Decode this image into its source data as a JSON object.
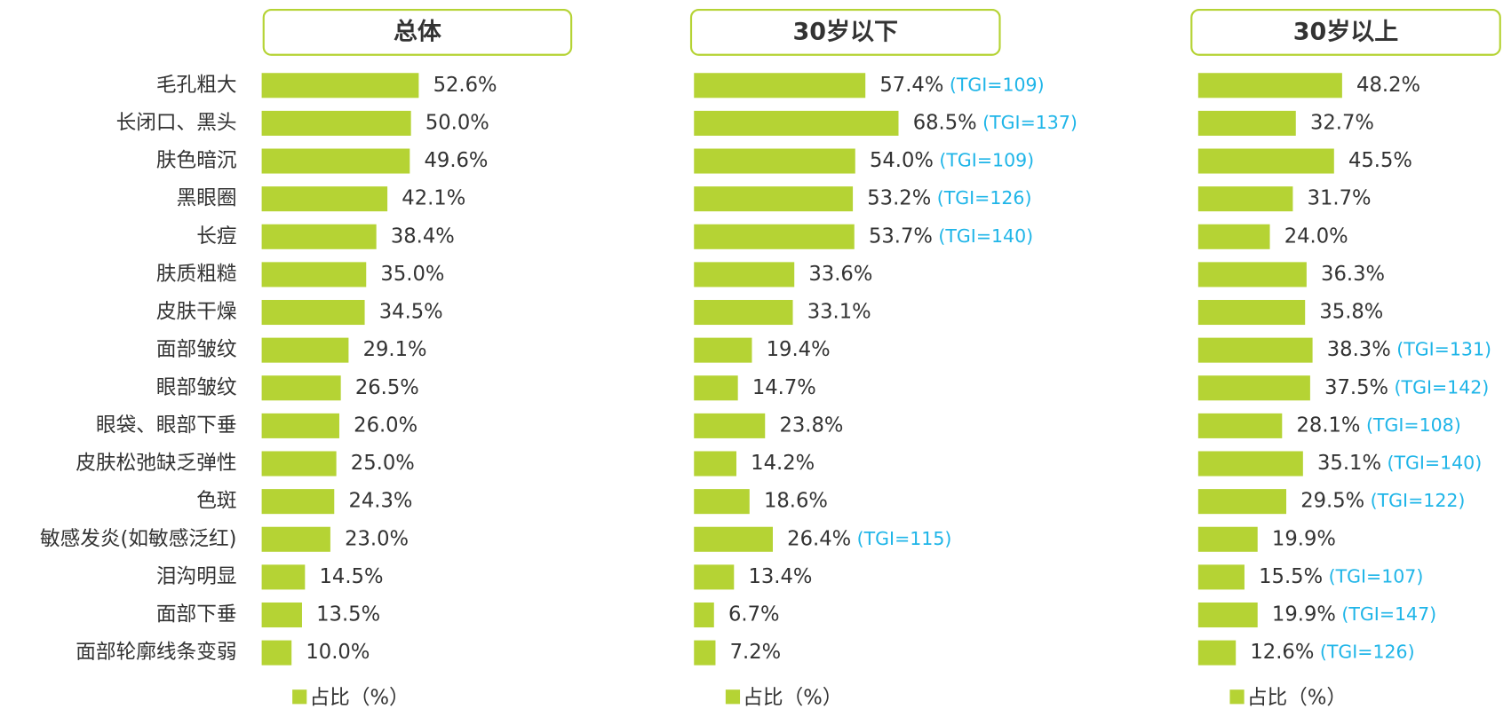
{
  "chart_data": [
    {
      "type": "bar",
      "orientation": "horizontal",
      "title": "总体",
      "categories": [
        "毛孔粗大",
        "长闭口、黑头",
        "肤色暗沉",
        "黑眼圈",
        "长痘",
        "肤质粗糙",
        "皮肤干燥",
        "面部皱纹",
        "眼部皱纹",
        "眼袋、眼部下垂",
        "皮肤松弛缺乏弹性",
        "色斑",
        "敏感发炎(如敏感泛红)",
        "泪沟明显",
        "面部下垂",
        "面部轮廓线条变弱"
      ],
      "series": [
        {
          "name": "占比（%）",
          "color": "#b5d334",
          "values": [
            52.6,
            50.0,
            49.6,
            42.1,
            38.4,
            35.0,
            34.5,
            29.1,
            26.5,
            26.0,
            25.0,
            24.3,
            23.0,
            14.5,
            13.5,
            10.0
          ],
          "value_labels": [
            "52.6%",
            "50.0%",
            "49.6%",
            "42.1%",
            "38.4%",
            "35.0%",
            "34.5%",
            "29.1%",
            "26.5%",
            "26.0%",
            "25.0%",
            "24.3%",
            "23.0%",
            "14.5%",
            "13.5%",
            "10.0%"
          ]
        }
      ]
    },
    {
      "type": "bar",
      "orientation": "horizontal",
      "title": "30岁以下",
      "series": [
        {
          "name": "占比（%）",
          "color": "#b5d334",
          "values": [
            57.4,
            68.5,
            54.0,
            53.2,
            53.7,
            33.6,
            33.1,
            19.4,
            14.7,
            23.8,
            14.2,
            18.6,
            26.4,
            13.4,
            6.7,
            7.2
          ],
          "value_labels": [
            "57.4%",
            "68.5%",
            "54.0%",
            "53.2%",
            "53.7%",
            "33.6%",
            "33.1%",
            "19.4%",
            "14.7%",
            "23.8%",
            "14.2%",
            "18.6%",
            "26.4%",
            "13.4%",
            "6.7%",
            "7.2%"
          ]
        }
      ],
      "annotations": [
        "(TGI=109)",
        "(TGI=137)",
        "(TGI=109)",
        "(TGI=126)",
        "(TGI=140)",
        null,
        null,
        null,
        null,
        null,
        null,
        null,
        "(TGI=115)",
        null,
        null,
        null
      ],
      "annotation_color": "#1fb5e8"
    },
    {
      "type": "bar",
      "orientation": "horizontal",
      "title": "30岁以上",
      "series": [
        {
          "name": "占比（%）",
          "color": "#b5d334",
          "values": [
            48.2,
            32.7,
            45.5,
            31.7,
            24.0,
            36.3,
            35.8,
            38.3,
            37.5,
            28.1,
            35.1,
            29.5,
            19.9,
            15.5,
            19.9,
            12.6
          ],
          "value_labels": [
            "48.2%",
            "32.7%",
            "45.5%",
            "31.7%",
            "24.0%",
            "36.3%",
            "35.8%",
            "38.3%",
            "37.5%",
            "28.1%",
            "35.1%",
            "29.5%",
            "19.9%",
            "15.5%",
            "19.9%",
            "12.6%"
          ]
        }
      ],
      "annotations": [
        null,
        null,
        null,
        null,
        null,
        null,
        null,
        "(TGI=131)",
        "(TGI=142)",
        "(TGI=108)",
        "(TGI=140)",
        "(TGI=122)",
        null,
        "(TGI=107)",
        "(TGI=147)",
        "(TGI=126)"
      ],
      "annotation_color": "#1fb5e8"
    }
  ]
}
